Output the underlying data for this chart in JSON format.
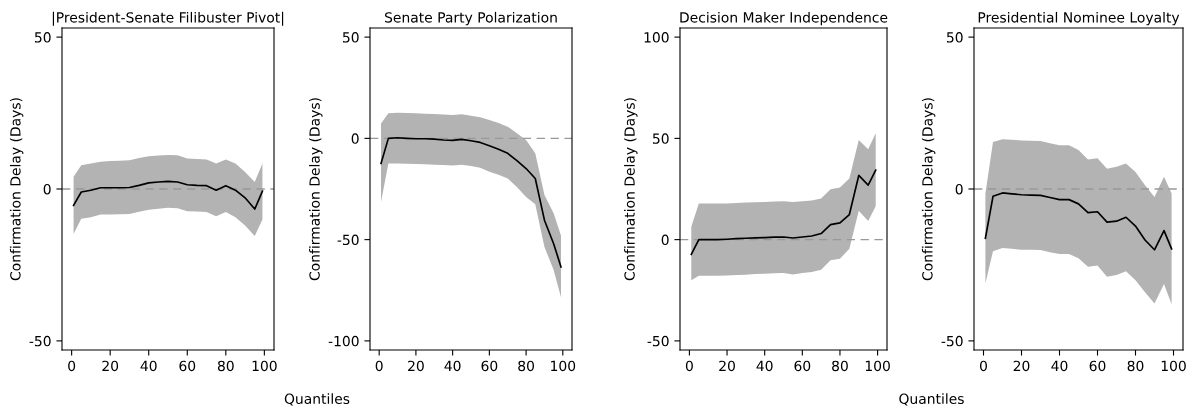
{
  "chart_data": [
    {
      "type": "line",
      "title": "|President-Senate Filibuster Pivot|",
      "xlabel": "Quantiles",
      "ylabel": "Confirmation Delay (Days)",
      "xlim": [
        -5,
        105
      ],
      "ylim": [
        -53,
        53
      ],
      "xticks": [
        0,
        20,
        40,
        60,
        80,
        100
      ],
      "yticks": [
        -50,
        0,
        50
      ],
      "grid": false,
      "legend": false,
      "x": [
        1,
        5,
        10,
        15,
        20,
        25,
        30,
        35,
        40,
        45,
        50,
        55,
        60,
        65,
        70,
        75,
        80,
        85,
        90,
        95,
        99
      ],
      "series": [
        {
          "color": "#000000",
          "values": [
            -5.4,
            -1,
            -0.4,
            0.4,
            0.4,
            0.4,
            0.5,
            1.2,
            2,
            2.3,
            2.5,
            2.3,
            1.4,
            1.2,
            1.1,
            -0.4,
            1.1,
            -0.4,
            -2.9,
            -6.6,
            -0.7
          ],
          "lower": [
            -14.8,
            -9.8,
            -9.3,
            -8.4,
            -8.4,
            -8.3,
            -8.2,
            -7.5,
            -6.8,
            -6.5,
            -6.2,
            -6.3,
            -7.3,
            -7.4,
            -7.6,
            -9,
            -7.6,
            -9.3,
            -12,
            -15.5,
            -10
          ],
          "upper": [
            4,
            7.8,
            8.4,
            9,
            9.2,
            9.3,
            9.5,
            10.2,
            10.8,
            11,
            11.2,
            11.1,
            10,
            9.9,
            9.7,
            8.4,
            9.7,
            8.4,
            5.6,
            2.3,
            8.4
          ]
        }
      ],
      "ref_lines": [
        {
          "axis": "y",
          "value": 0,
          "color": "#999999",
          "line_style": "dashed"
        }
      ]
    },
    {
      "type": "line",
      "title": "Senate Party Polarization",
      "ylabel": "Confirmation Delay (Days)",
      "xlim": [
        -5,
        105
      ],
      "ylim": [
        -104.5,
        54.5
      ],
      "xticks": [
        0,
        20,
        40,
        60,
        80,
        100
      ],
      "yticks": [
        -100,
        -50,
        0,
        50
      ],
      "grid": false,
      "legend": false,
      "x": [
        1,
        5,
        10,
        15,
        20,
        25,
        30,
        35,
        40,
        45,
        50,
        55,
        60,
        65,
        70,
        75,
        80,
        85,
        90,
        95,
        99
      ],
      "series": [
        {
          "color": "#000000",
          "values": [
            -12.4,
            0,
            0.3,
            0,
            -0.2,
            -0.2,
            -0.4,
            -0.8,
            -1,
            -0.5,
            -1.2,
            -2,
            -3.6,
            -5.4,
            -7.4,
            -11,
            -14.9,
            -19.8,
            -40.4,
            -52,
            -63.5
          ],
          "lower": [
            -31.4,
            -12.4,
            -12.4,
            -12.5,
            -12.7,
            -12.8,
            -13,
            -13.2,
            -13.4,
            -13,
            -13.7,
            -14.5,
            -16.5,
            -18,
            -19.8,
            -24,
            -28.9,
            -32.5,
            -53.6,
            -65,
            -78.4
          ],
          "upper": [
            7.4,
            12.4,
            12.7,
            12.5,
            12.4,
            12.2,
            12,
            11.8,
            11.6,
            11.9,
            11.2,
            10.4,
            9.1,
            7.6,
            5.8,
            2.5,
            -0.8,
            -7.4,
            -28,
            -37,
            -47.9
          ]
        }
      ],
      "ref_lines": [
        {
          "axis": "y",
          "value": 0,
          "color": "#999999",
          "line_style": "dashed"
        }
      ]
    },
    {
      "type": "line",
      "title": "Decision Maker Independence",
      "xlabel": "Quantiles",
      "ylabel": "Confirmation Delay (Days)",
      "xlim": [
        -5,
        105
      ],
      "ylim": [
        -54.5,
        104.5
      ],
      "xticks": [
        0,
        20,
        40,
        60,
        80,
        100
      ],
      "yticks": [
        -50,
        0,
        50,
        100
      ],
      "grid": false,
      "legend": false,
      "x": [
        1,
        5,
        10,
        15,
        20,
        25,
        30,
        35,
        40,
        45,
        50,
        55,
        60,
        65,
        70,
        75,
        80,
        85,
        90,
        95,
        99
      ],
      "series": [
        {
          "color": "#000000",
          "values": [
            -7.3,
            0,
            0,
            0,
            0.2,
            0.5,
            0.7,
            0.9,
            1,
            1.2,
            1.3,
            0.8,
            1.3,
            1.8,
            3,
            7.4,
            8.3,
            12.4,
            31.7,
            26.9,
            34.3
          ],
          "lower": [
            -20.1,
            -17.8,
            -17.8,
            -17.8,
            -17.7,
            -17.5,
            -17.3,
            -17,
            -16.8,
            -16.6,
            -16.5,
            -17.2,
            -16.5,
            -16,
            -14.9,
            -10.2,
            -9.4,
            -4.5,
            14.2,
            9.2,
            16.5
          ],
          "upper": [
            6.3,
            17.8,
            17.8,
            17.8,
            17.9,
            18.1,
            18.3,
            18.5,
            18.6,
            18.8,
            19,
            18.6,
            19,
            19.3,
            20.3,
            24.9,
            25.7,
            30.2,
            49.2,
            44.6,
            52.5
          ]
        }
      ],
      "ref_lines": [
        {
          "axis": "y",
          "value": 0,
          "color": "#999999",
          "line_style": "dashed"
        }
      ]
    },
    {
      "type": "line",
      "title": "Presidential Nominee Loyalty",
      "ylabel": "Confirmation Delay (Days)",
      "xlim": [
        -5,
        105
      ],
      "ylim": [
        -53,
        53
      ],
      "xticks": [
        0,
        20,
        40,
        60,
        80,
        100
      ],
      "yticks": [
        -50,
        0,
        50
      ],
      "grid": false,
      "legend": false,
      "x": [
        1,
        5,
        10,
        15,
        20,
        25,
        30,
        35,
        40,
        45,
        50,
        55,
        60,
        65,
        70,
        75,
        80,
        85,
        90,
        95,
        99
      ],
      "series": [
        {
          "color": "#000000",
          "values": [
            -16.2,
            -2.4,
            -1.3,
            -1.6,
            -1.9,
            -2,
            -2.1,
            -2.8,
            -3.5,
            -3.5,
            -4.9,
            -7.8,
            -7.5,
            -10.9,
            -10.6,
            -9.3,
            -12.2,
            -16.8,
            -20,
            -13.7,
            -19.7
          ],
          "lower": [
            -31,
            -20.5,
            -19.4,
            -19.7,
            -20,
            -20,
            -20.1,
            -20.8,
            -21.4,
            -21.4,
            -22.8,
            -25.6,
            -25.2,
            -28.9,
            -28.3,
            -27.1,
            -30,
            -34,
            -37.7,
            -31.3,
            -37.9
          ],
          "upper": [
            -1.5,
            15.5,
            16.4,
            16.2,
            16,
            15.9,
            15.8,
            15.1,
            14.4,
            14.4,
            12.8,
            9.7,
            10.1,
            6.7,
            7.3,
            8.4,
            5.6,
            1.2,
            -2.6,
            4,
            -1.5
          ]
        }
      ],
      "ref_lines": [
        {
          "axis": "y",
          "value": 0,
          "color": "#999999",
          "line_style": "dashed"
        }
      ]
    }
  ]
}
